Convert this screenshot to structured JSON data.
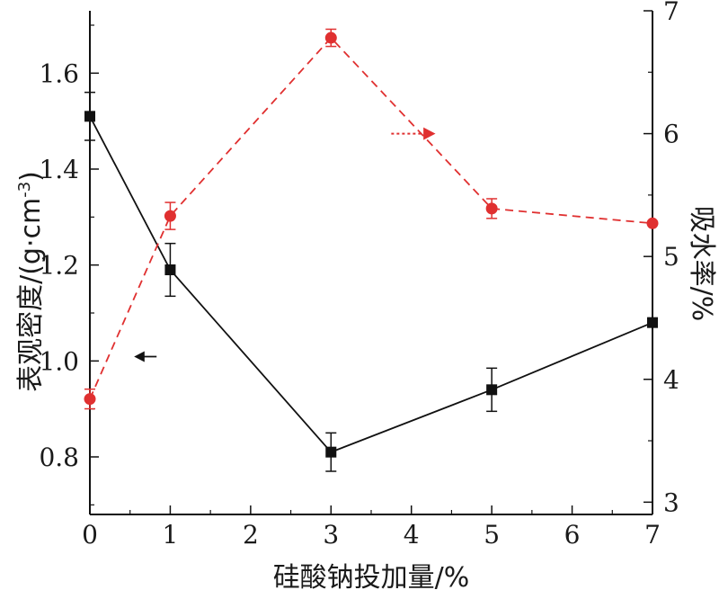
{
  "chart_data": {
    "type": "line",
    "title": "",
    "xlabel": "硅酸钠投加量/%",
    "ylabel_left": "表观密度/(g·cm",
    "ylabel_left_sup": "-3",
    "ylabel_left_tail": ")",
    "ylabel_right": "吸水率/%",
    "xlim": [
      0,
      7
    ],
    "ylim_left": [
      0.68,
      1.73
    ],
    "ylim_right": [
      2.9,
      7.0
    ],
    "x_ticks": [
      0,
      1,
      2,
      3,
      4,
      5,
      6,
      7
    ],
    "x_tick_labels": [
      "0",
      "1",
      "2",
      "3",
      "4",
      "5",
      "6",
      "7"
    ],
    "y_left_ticks": [
      0.8,
      1.0,
      1.2,
      1.4,
      1.6
    ],
    "y_left_tick_labels": [
      "0.8",
      "1.0",
      "1.2",
      "1.4",
      "1.6"
    ],
    "y_right_ticks": [
      3,
      4,
      5,
      6,
      7
    ],
    "y_right_tick_labels": [
      "3",
      "4",
      "5",
      "6",
      "7"
    ],
    "grid": false,
    "series": [
      {
        "axis": "left",
        "color": "#111111",
        "line_style": "solid",
        "marker": "square",
        "x": [
          0,
          1,
          3,
          5,
          7
        ],
        "y": [
          1.51,
          1.19,
          0.81,
          0.94,
          1.08
        ],
        "error": [
          0.05,
          0.055,
          0.04,
          0.045,
          0.0
        ]
      },
      {
        "axis": "right",
        "color": "#e03030",
        "line_style": "dashed",
        "marker": "circle",
        "x": [
          0,
          1,
          3,
          5,
          7
        ],
        "y": [
          3.84,
          5.33,
          6.78,
          5.39,
          5.27
        ],
        "error": [
          0.08,
          0.11,
          0.07,
          0.08,
          0.0
        ]
      }
    ],
    "annotations": [
      {
        "type": "arrow",
        "direction": "left",
        "axis_series": "left",
        "color": "#111111"
      },
      {
        "type": "arrow",
        "direction": "right",
        "axis_series": "right",
        "color": "#e03030"
      }
    ]
  }
}
